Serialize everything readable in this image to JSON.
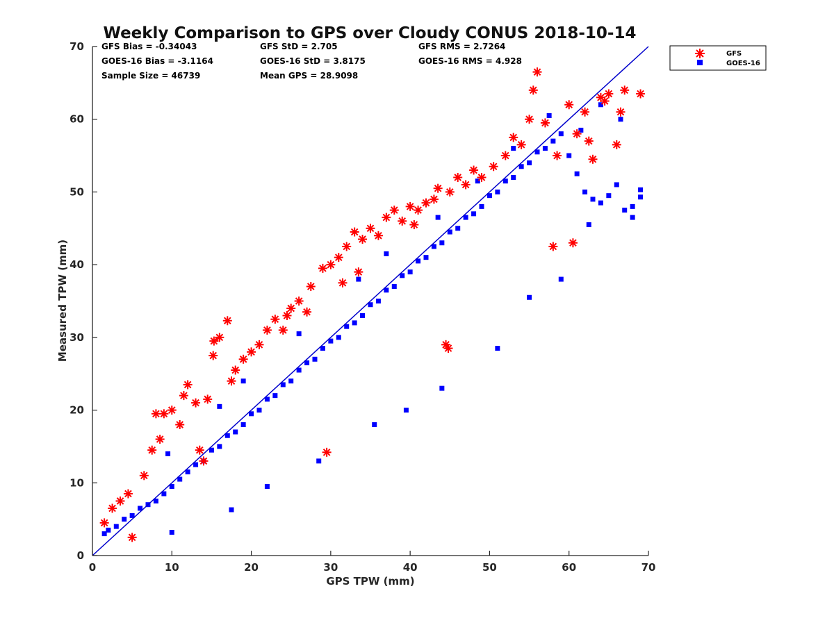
{
  "colors": {
    "gfs": "#ff0000",
    "goes": "#0000ff",
    "reference_line": "#0000cc",
    "axes": "#262626"
  },
  "chart_data": {
    "type": "scatter",
    "title": "Weekly Comparison to GPS over Cloudy CONUS 2018-10-14",
    "xlabel": "GPS TPW (mm)",
    "ylabel": "Measured TPW (mm)",
    "xlim": [
      0,
      70
    ],
    "ylim": [
      0,
      70
    ],
    "xticks": [
      "0",
      "10",
      "20",
      "30",
      "40",
      "50",
      "60",
      "70"
    ],
    "yticks": [
      "0",
      "10",
      "20",
      "30",
      "40",
      "50",
      "60",
      "70"
    ],
    "grid": false,
    "legend_position": "outside top-right",
    "reference_line": {
      "x": [
        0,
        70
      ],
      "y": [
        0,
        70
      ]
    },
    "stats": [
      "GFS Bias = -0.34043",
      "GFS StD = 2.705",
      "GFS RMS = 2.7264",
      "GOES-16 Bias = -3.1164",
      "GOES-16 StD = 3.8175",
      "GOES-16 RMS = 4.928",
      "Sample Size = 46739",
      "Mean GPS = 28.9098"
    ],
    "series": [
      {
        "name": "GFS",
        "marker": "asterisk",
        "color": "#ff0000",
        "x": [
          1.5,
          2.5,
          3.5,
          4.5,
          5.0,
          6.5,
          7.5,
          8.5,
          9.0,
          10.0,
          11.5,
          12.0,
          13.0,
          14.5,
          15.2,
          15.3,
          16.0,
          17.0,
          17.5,
          18.0,
          19.0,
          20.0,
          21.0,
          22.0,
          23.0,
          24.5,
          25.0,
          26.0,
          27.5,
          29.5,
          29.0,
          30.0,
          31.0,
          32.0,
          33.0,
          34.0,
          35.0,
          36.0,
          37.0,
          38.0,
          39.0,
          40.0,
          41.0,
          42.0,
          43.0,
          44.5,
          44.8,
          45.0,
          47.0,
          49.0,
          50.5,
          52.0,
          54.0,
          55.0,
          55.5,
          56.0,
          57.0,
          58.5,
          60.0,
          60.5,
          61.0,
          62.0,
          62.5,
          63.0,
          64.0,
          64.5,
          65.0,
          66.0,
          66.5,
          67.0,
          69.0,
          8.0,
          11.0,
          13.5,
          14.0,
          24.0,
          27.0,
          31.5,
          33.5,
          40.5,
          43.5,
          46.0,
          48.0,
          53.0,
          58.0
        ],
        "y": [
          4.5,
          6.5,
          7.5,
          8.5,
          2.5,
          11.0,
          14.5,
          16.0,
          19.5,
          20.0,
          22.0,
          23.5,
          21.0,
          21.5,
          27.5,
          29.5,
          30.0,
          32.3,
          24.0,
          25.5,
          27.0,
          28.0,
          29.0,
          31.0,
          32.5,
          33.0,
          34.0,
          35.0,
          37.0,
          14.2,
          39.5,
          40.0,
          41.0,
          42.5,
          44.5,
          43.5,
          45.0,
          44.0,
          46.5,
          47.5,
          46.0,
          48.0,
          47.5,
          48.5,
          49.0,
          29.0,
          28.5,
          50.0,
          51.0,
          52.0,
          53.5,
          55.0,
          56.5,
          60.0,
          64.0,
          66.5,
          59.5,
          55.0,
          62.0,
          43.0,
          58.0,
          61.0,
          57.0,
          54.5,
          63.0,
          62.5,
          63.5,
          56.5,
          61.0,
          64.0,
          63.5,
          19.5,
          18.0,
          14.5,
          13.0,
          31.0,
          33.5,
          37.5,
          39.0,
          45.5,
          50.5,
          52.0,
          53.0,
          57.5,
          42.5
        ]
      },
      {
        "name": "GOES-16",
        "marker": "square",
        "color": "#0000ff",
        "x": [
          1.5,
          2.0,
          3.0,
          4.0,
          5.0,
          6.0,
          7.0,
          8.0,
          9.0,
          10.0,
          11.0,
          12.0,
          13.0,
          14.0,
          15.0,
          16.0,
          17.0,
          18.0,
          19.0,
          20.0,
          21.0,
          22.0,
          23.0,
          24.0,
          25.0,
          26.0,
          27.0,
          28.0,
          29.0,
          30.0,
          31.0,
          32.0,
          33.0,
          34.0,
          35.0,
          36.0,
          37.0,
          38.0,
          39.0,
          40.0,
          41.0,
          42.0,
          43.0,
          44.0,
          45.0,
          46.0,
          47.0,
          48.0,
          49.0,
          50.0,
          51.0,
          52.0,
          53.0,
          54.0,
          55.0,
          56.0,
          57.0,
          58.0,
          59.0,
          60.0,
          61.0,
          62.0,
          63.0,
          64.0,
          65.0,
          66.0,
          67.0,
          68.0,
          69.0,
          69.0,
          9.5,
          16.0,
          19.0,
          26.0,
          33.5,
          37.0,
          43.5,
          48.5,
          53.0,
          57.5,
          61.5,
          64.0,
          66.5,
          10.0,
          17.5,
          22.0,
          28.5,
          35.5,
          39.5,
          44.0,
          51.0,
          55.0,
          59.0,
          62.5,
          68.0
        ],
        "y": [
          3.0,
          3.5,
          4.0,
          5.0,
          5.5,
          6.5,
          7.0,
          7.5,
          8.5,
          9.5,
          10.5,
          11.5,
          12.5,
          13.0,
          14.5,
          15.0,
          16.5,
          17.0,
          18.0,
          19.5,
          20.0,
          21.5,
          22.0,
          23.5,
          24.0,
          25.5,
          26.5,
          27.0,
          28.5,
          29.5,
          30.0,
          31.5,
          32.0,
          33.0,
          34.5,
          35.0,
          36.5,
          37.0,
          38.5,
          39.0,
          40.5,
          41.0,
          42.5,
          43.0,
          44.5,
          45.0,
          46.5,
          47.0,
          48.0,
          49.5,
          50.0,
          51.5,
          52.0,
          53.5,
          54.0,
          55.5,
          56.0,
          57.0,
          58.0,
          55.0,
          52.5,
          50.0,
          49.0,
          48.5,
          49.5,
          51.0,
          47.5,
          48.0,
          49.3,
          50.3,
          14.0,
          20.5,
          24.0,
          30.5,
          38.0,
          41.5,
          46.5,
          51.5,
          56.0,
          60.5,
          58.5,
          62.0,
          60.0,
          3.2,
          6.3,
          9.5,
          13.0,
          18.0,
          20.0,
          23.0,
          28.5,
          35.5,
          38.0,
          45.5,
          46.5
        ]
      }
    ]
  }
}
